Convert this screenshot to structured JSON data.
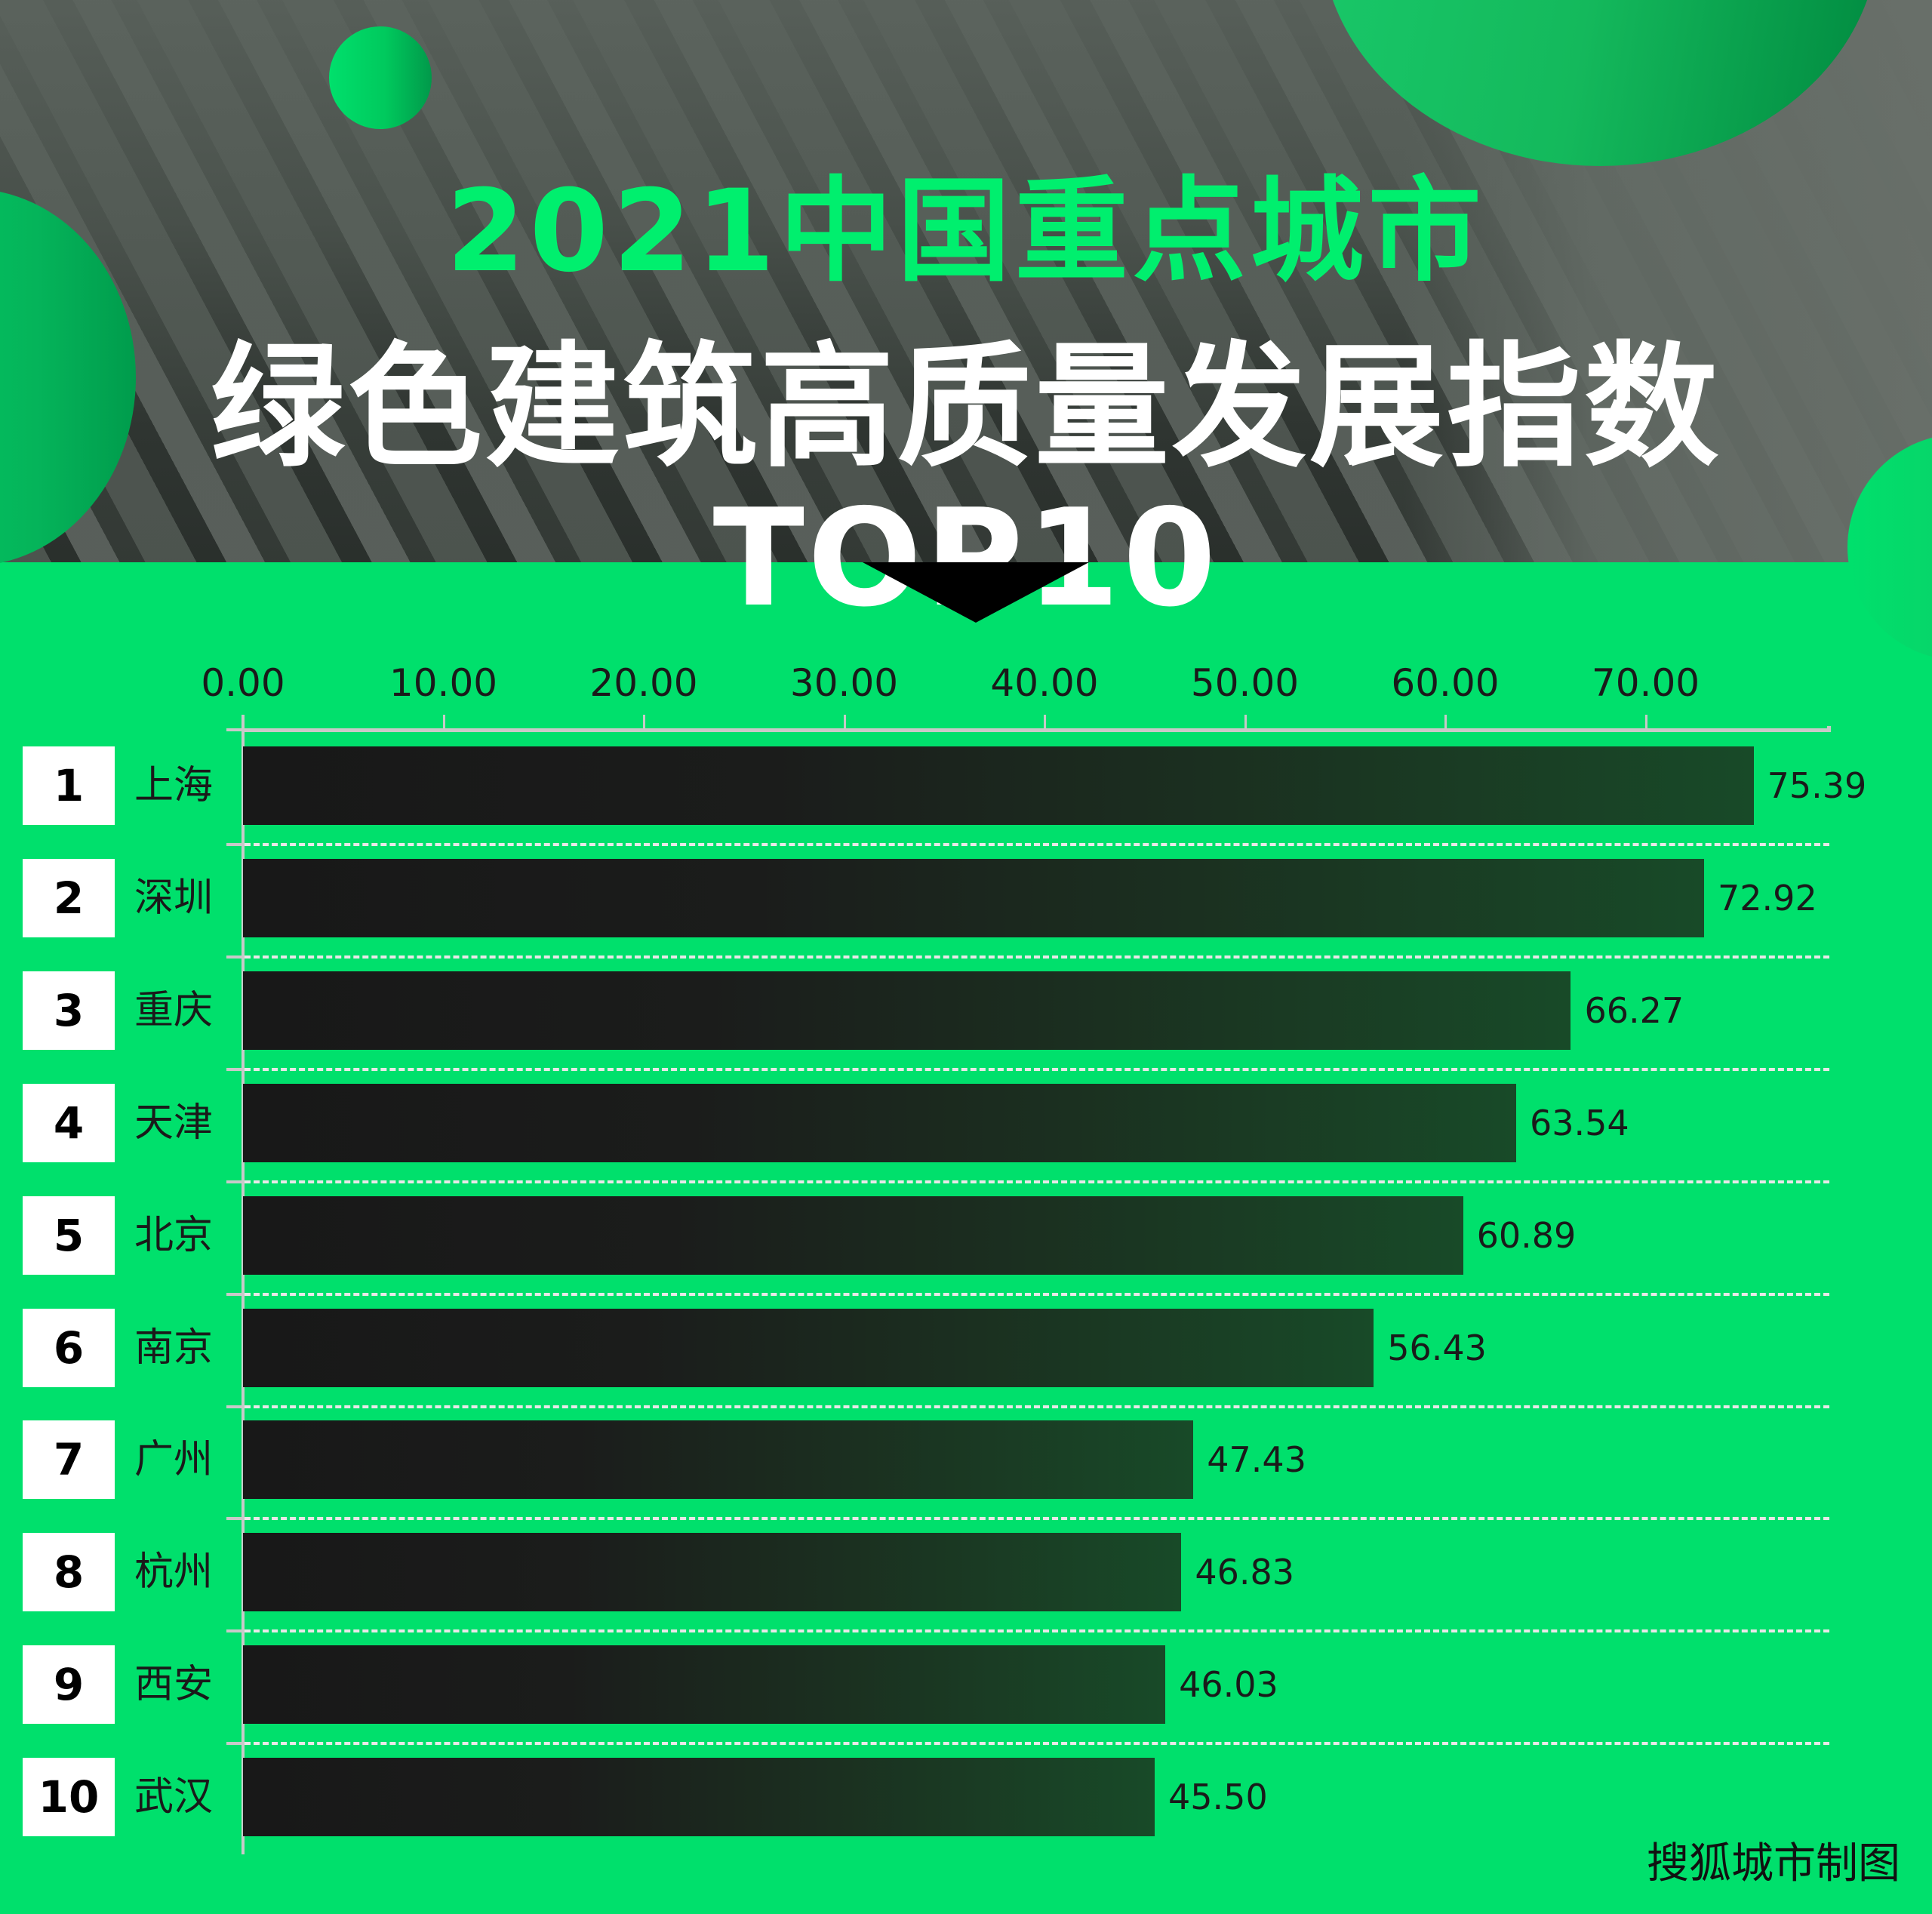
{
  "header": {
    "title_line1": "2021中国重点城市",
    "title_line2": "绿色建筑高质量发展指数TOP10"
  },
  "colors": {
    "background_green": "#00e06c",
    "title_green": "#00ef6e",
    "bar_dark": "#181818",
    "bar_dark_green": "#184a28",
    "axis_gray": "#c9c9c9",
    "rank_box": "#ffffff"
  },
  "credit": "搜狐城市制图",
  "axis": {
    "ticks": [
      "0.00",
      "10.00",
      "20.00",
      "30.00",
      "40.00",
      "50.00",
      "60.00",
      "70.00"
    ]
  },
  "rows": [
    {
      "rank": "1",
      "city": "上海",
      "value": "75.39"
    },
    {
      "rank": "2",
      "city": "深圳",
      "value": "72.92"
    },
    {
      "rank": "3",
      "city": "重庆",
      "value": "66.27"
    },
    {
      "rank": "4",
      "city": "天津",
      "value": "63.54"
    },
    {
      "rank": "5",
      "city": "北京",
      "value": "60.89"
    },
    {
      "rank": "6",
      "city": "南京",
      "value": "56.43"
    },
    {
      "rank": "7",
      "city": "广州",
      "value": "47.43"
    },
    {
      "rank": "8",
      "city": "杭州",
      "value": "46.83"
    },
    {
      "rank": "9",
      "city": "西安",
      "value": "46.03"
    },
    {
      "rank": "10",
      "city": "武汉",
      "value": "45.50"
    }
  ],
  "chart_data": {
    "type": "bar",
    "orientation": "horizontal",
    "title": "2021中国重点城市绿色建筑高质量发展指数TOP10",
    "categories": [
      "上海",
      "深圳",
      "重庆",
      "天津",
      "北京",
      "南京",
      "广州",
      "杭州",
      "西安",
      "武汉"
    ],
    "ranks": [
      1,
      2,
      3,
      4,
      5,
      6,
      7,
      8,
      9,
      10
    ],
    "values": [
      75.39,
      72.92,
      66.27,
      63.54,
      60.89,
      56.43,
      47.43,
      46.83,
      46.03,
      45.5
    ],
    "xlabel": "",
    "ylabel": "",
    "xlim": [
      0,
      79
    ],
    "x_ticks": [
      0,
      10,
      20,
      30,
      40,
      50,
      60,
      70
    ],
    "x_axis_position": "top",
    "grid": "dashed horizontal separators between rows",
    "data_labels": true,
    "source_note": "搜狐城市制图"
  }
}
